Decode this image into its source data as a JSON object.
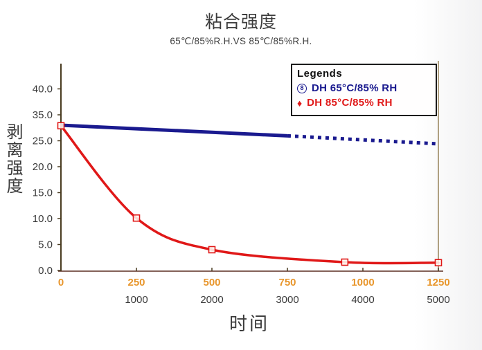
{
  "header": {
    "title": "粘合强度",
    "subtitle": "65℃/85%R.H.VS 85℃/85%R.H."
  },
  "chart_data": {
    "type": "line",
    "title": "粘合强度",
    "subtitle": "65℃/85%R.H.VS 85℃/85%R.H.",
    "xlabel": "时间",
    "ylabel": "剥离强度",
    "grid": "off",
    "y_axis": {
      "tick_labels": [
        "0.0",
        "5.0",
        "10.0",
        "15.0",
        "20.0",
        "25.0",
        "35.0",
        "40.0"
      ],
      "tick_values": [
        0,
        5,
        10,
        15,
        20,
        25,
        35,
        40
      ],
      "note": "eight evenly spaced ticks; the 30.0 label is absent on the axis"
    },
    "x_axis_primary": {
      "tick_labels": [
        "0",
        "250",
        "500",
        "750",
        "1000",
        "1250"
      ],
      "tick_values": [
        0,
        250,
        500,
        750,
        1000,
        1250
      ],
      "color": "#e8962c",
      "range": [
        0,
        1250
      ]
    },
    "x_axis_secondary": {
      "tick_labels": [
        "1000",
        "2000",
        "3000",
        "4000",
        "5000"
      ],
      "under_primary_values": [
        250,
        500,
        750,
        1000,
        1250
      ],
      "color": "#3a3a3a"
    },
    "series": [
      {
        "name": "DH 65°C/85% RH",
        "color": "#1a1a8f",
        "line_width": 5,
        "marker": "none",
        "style": "solid until t=750, dashed after",
        "solid_points": [
          [
            0,
            31.0
          ],
          [
            750,
            26.9
          ]
        ],
        "dashed_points": [
          [
            750,
            26.9
          ],
          [
            1250,
            24.4
          ]
        ]
      },
      {
        "name": "DH 85°C/85% RH",
        "color": "#e01818",
        "line_width": 3.5,
        "marker": "open-square",
        "style": "smooth solid curve",
        "points": [
          [
            0,
            30.8
          ],
          [
            250,
            10.1
          ],
          [
            500,
            4.0
          ],
          [
            940,
            1.6
          ],
          [
            1250,
            1.5
          ]
        ]
      }
    ],
    "legend": {
      "title": "Legends",
      "position": "top-right",
      "entries": [
        {
          "symbol_text": "8",
          "symbol": "circled-8",
          "label": "DH 65°C/85% RH",
          "color": "#1a1a8f"
        },
        {
          "symbol_text": "♦",
          "symbol": "diamond",
          "label": "DH 85°C/85% RH",
          "color": "#e01818"
        }
      ]
    },
    "colors": {
      "y_axis_line": "#493b20",
      "x_axis_line": "#5a2d20",
      "right_border_line": "#9c8a62",
      "tick_text": "#3a3a3a"
    }
  }
}
